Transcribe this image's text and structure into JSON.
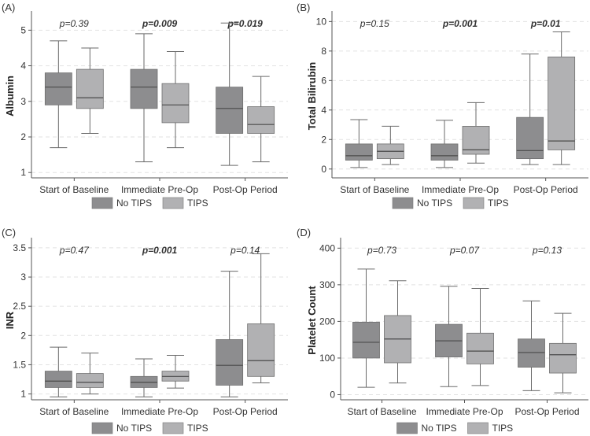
{
  "figure": {
    "colors": {
      "no_tips": "#8d8d8f",
      "tips": "#b1b1b3",
      "grid": "#e2e2e2",
      "axis": "#555555",
      "median": "#4a4a4a"
    }
  },
  "chart_data": [
    {
      "panel": "(A)",
      "type": "box",
      "ylabel": "Albumin",
      "categories": [
        "Start of Baseline",
        "Immediate Pre-Op",
        "Post-Op Period"
      ],
      "ylim": [
        0.85,
        5.45
      ],
      "yticks": [
        1,
        2,
        3,
        4,
        5
      ],
      "grid": true,
      "legend": [
        "No TIPS",
        "TIPS"
      ],
      "pvalues": [
        {
          "text": "p=0.39",
          "bold": false
        },
        {
          "text": "p=0.009",
          "bold": true
        },
        {
          "text": "p=0.019",
          "bold": true
        }
      ],
      "series": [
        {
          "name": "No TIPS",
          "boxes": [
            {
              "min": 1.7,
              "q1": 2.9,
              "median": 3.4,
              "q3": 3.8,
              "max": 4.7
            },
            {
              "min": 1.3,
              "q1": 2.8,
              "median": 3.4,
              "q3": 3.9,
              "max": 4.9
            },
            {
              "min": 1.2,
              "q1": 2.1,
              "median": 2.8,
              "q3": 3.4,
              "max": 5.2
            }
          ]
        },
        {
          "name": "TIPS",
          "boxes": [
            {
              "min": 2.1,
              "q1": 2.8,
              "median": 3.1,
              "q3": 3.9,
              "max": 4.5
            },
            {
              "min": 1.7,
              "q1": 2.4,
              "median": 2.9,
              "q3": 3.5,
              "max": 4.4
            },
            {
              "min": 1.3,
              "q1": 2.1,
              "median": 2.35,
              "q3": 2.85,
              "max": 3.7
            }
          ]
        }
      ]
    },
    {
      "panel": "(B)",
      "type": "box",
      "ylabel": "Total Bilirubin",
      "categories": [
        "Start of Baseline",
        "Immediate Pre-Op",
        "Post-Op Period"
      ],
      "ylim": [
        -0.6,
        10.5
      ],
      "yticks": [
        0,
        2,
        4,
        6,
        8,
        10
      ],
      "grid": true,
      "legend": [
        "No TIPS",
        "TIPS"
      ],
      "pvalues": [
        {
          "text": "p=0.15",
          "bold": false
        },
        {
          "text": "p=0.001",
          "bold": true
        },
        {
          "text": "p=0.01",
          "bold": true
        }
      ],
      "series": [
        {
          "name": "No TIPS",
          "boxes": [
            {
              "min": 0.1,
              "q1": 0.6,
              "median": 0.9,
              "q3": 1.7,
              "max": 3.35
            },
            {
              "min": 0.1,
              "q1": 0.6,
              "median": 0.9,
              "q3": 1.7,
              "max": 3.3
            },
            {
              "min": 0.3,
              "q1": 0.7,
              "median": 1.25,
              "q3": 3.5,
              "max": 7.8
            }
          ]
        },
        {
          "name": "TIPS",
          "boxes": [
            {
              "min": 0.3,
              "q1": 0.7,
              "median": 1.2,
              "q3": 1.7,
              "max": 2.9
            },
            {
              "min": 0.4,
              "q1": 1.0,
              "median": 1.3,
              "q3": 2.9,
              "max": 4.5
            },
            {
              "min": 0.3,
              "q1": 1.3,
              "median": 1.9,
              "q3": 7.6,
              "max": 9.3
            }
          ]
        }
      ]
    },
    {
      "panel": "(C)",
      "type": "box",
      "ylabel": "INR",
      "categories": [
        "Start of Baseline",
        "Immediate Pre-Op",
        "Post-Op Period"
      ],
      "ylim": [
        0.9,
        3.62
      ],
      "yticks": [
        1,
        1.5,
        2,
        2.5,
        3,
        3.5
      ],
      "grid": true,
      "legend": [
        "No TIPS",
        "TIPS"
      ],
      "pvalues": [
        {
          "text": "p=0.47",
          "bold": false
        },
        {
          "text": "p=0.001",
          "bold": true
        },
        {
          "text": "p=0.14",
          "bold": false
        }
      ],
      "series": [
        {
          "name": "No TIPS",
          "boxes": [
            {
              "min": 0.95,
              "q1": 1.11,
              "median": 1.22,
              "q3": 1.39,
              "max": 1.8
            },
            {
              "min": 0.95,
              "q1": 1.11,
              "median": 1.2,
              "q3": 1.3,
              "max": 1.6
            },
            {
              "min": 0.95,
              "q1": 1.15,
              "median": 1.49,
              "q3": 1.93,
              "max": 3.1
            }
          ]
        },
        {
          "name": "TIPS",
          "boxes": [
            {
              "min": 1.0,
              "q1": 1.11,
              "median": 1.2,
              "q3": 1.35,
              "max": 1.7
            },
            {
              "min": 1.1,
              "q1": 1.22,
              "median": 1.3,
              "q3": 1.39,
              "max": 1.66
            },
            {
              "min": 1.19,
              "q1": 1.3,
              "median": 1.57,
              "q3": 2.2,
              "max": 3.4
            }
          ]
        }
      ]
    },
    {
      "panel": "(D)",
      "type": "box",
      "ylabel": "Platelet Count",
      "categories": [
        "Start of Baseline",
        "Immediate Pre-Op",
        "Post-Op Period"
      ],
      "ylim": [
        -14,
        420
      ],
      "yticks": [
        0,
        100,
        200,
        300,
        400
      ],
      "grid": true,
      "legend": [
        "No TIPS",
        "TIPS"
      ],
      "pvalues": [
        {
          "text": "p=0.73",
          "bold": false
        },
        {
          "text": "p=0.07",
          "bold": false
        },
        {
          "text": "p=0.13",
          "bold": false
        }
      ],
      "series": [
        {
          "name": "No TIPS",
          "boxes": [
            {
              "min": 20,
              "q1": 100,
              "median": 143,
              "q3": 198,
              "max": 343
            },
            {
              "min": 22,
              "q1": 103,
              "median": 147,
              "q3": 192,
              "max": 296
            },
            {
              "min": 11,
              "q1": 75,
              "median": 115,
              "q3": 152,
              "max": 256
            }
          ]
        },
        {
          "name": "TIPS",
          "boxes": [
            {
              "min": 32,
              "q1": 87,
              "median": 152,
              "q3": 216,
              "max": 311
            },
            {
              "min": 25,
              "q1": 84,
              "median": 119,
              "q3": 168,
              "max": 290
            },
            {
              "min": 5,
              "q1": 59,
              "median": 109,
              "q3": 140,
              "max": 222
            }
          ]
        }
      ]
    }
  ]
}
